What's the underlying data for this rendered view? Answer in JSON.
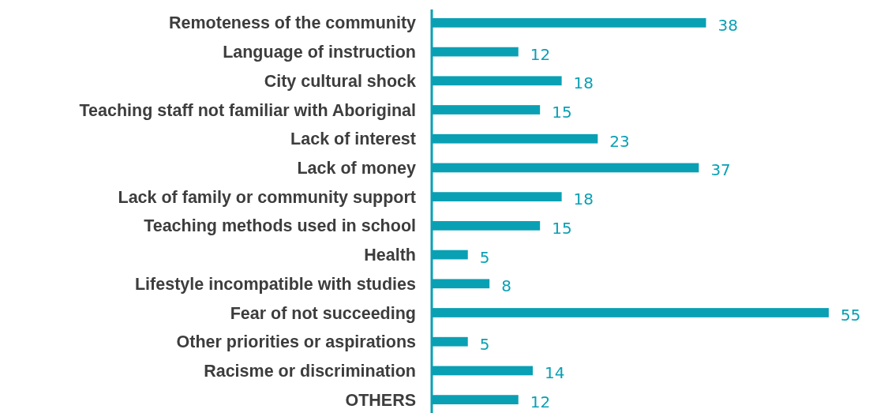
{
  "chart_data": {
    "type": "bar",
    "orientation": "horizontal",
    "categories": [
      "Remoteness of the community",
      "Language of instruction",
      "City cultural shock",
      "Teaching staff not familiar with Aboriginal",
      "Lack of interest",
      "Lack of money",
      "Lack of family or community support",
      "Teaching methods used in school",
      "Health",
      "Lifestyle incompatible with studies",
      "Fear of not succeeding",
      "Other priorities or aspirations",
      "Racisme or discrimination",
      "OTHERS"
    ],
    "values": [
      38,
      12,
      18,
      15,
      23,
      37,
      18,
      15,
      5,
      8,
      55,
      5,
      14,
      12
    ],
    "color": "#0aa0b4",
    "data_labels": true
  }
}
